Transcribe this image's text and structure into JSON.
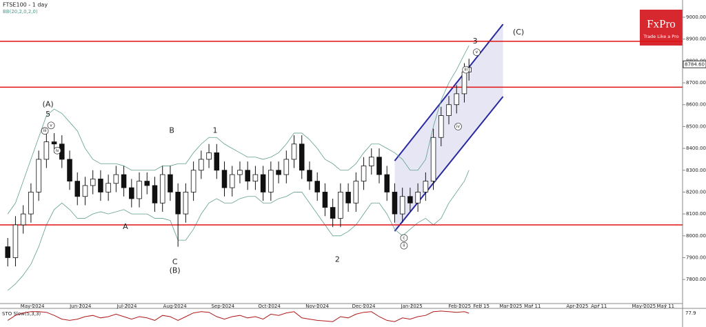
{
  "chart_data": {
    "type": "candlestick",
    "title": "FTSE100 - 1 day",
    "indicator": "BB(20,2,0,2,0)",
    "logo": "FxPro",
    "logo_tagline": "Trade Like a Pro",
    "x": [
      0,
      5,
      10,
      15,
      20,
      25,
      30,
      35,
      40,
      45,
      50,
      55,
      60,
      65,
      70,
      75,
      80,
      85,
      90,
      95,
      100,
      105,
      110,
      115,
      120,
      125,
      130,
      135,
      140,
      145,
      150,
      155,
      160,
      165,
      170,
      175,
      180,
      185,
      190,
      195,
      200,
      205,
      210,
      215,
      220,
      225,
      230,
      235,
      240,
      245,
      250,
      255,
      260,
      265,
      270,
      275,
      280,
      285,
      290,
      295,
      298
    ],
    "open": [
      7950,
      7900,
      8050,
      8100,
      8200,
      8350,
      8430,
      8420,
      8350,
      8250,
      8180,
      8230,
      8260,
      8200,
      8240,
      8280,
      8220,
      8170,
      8250,
      8230,
      8150,
      8280,
      8200,
      8100,
      8200,
      8300,
      8350,
      8380,
      8300,
      8220,
      8280,
      8300,
      8250,
      8280,
      8200,
      8300,
      8280,
      8350,
      8420,
      8300,
      8250,
      8200,
      8130,
      8080,
      8200,
      8150,
      8250,
      8320,
      8360,
      8280,
      8200,
      8100,
      8180,
      8150,
      8200,
      8250,
      8450,
      8550,
      8600,
      8650,
      8750
    ],
    "high": [
      7990,
      8090,
      8140,
      8240,
      8390,
      8470,
      8470,
      8460,
      8390,
      8290,
      8270,
      8300,
      8300,
      8280,
      8320,
      8320,
      8260,
      8290,
      8290,
      8270,
      8320,
      8320,
      8240,
      8240,
      8340,
      8390,
      8420,
      8420,
      8340,
      8320,
      8340,
      8340,
      8320,
      8320,
      8340,
      8340,
      8390,
      8460,
      8460,
      8340,
      8290,
      8240,
      8170,
      8240,
      8240,
      8290,
      8360,
      8400,
      8400,
      8320,
      8240,
      8220,
      8220,
      8240,
      8290,
      8490,
      8590,
      8640,
      8690,
      8790,
      8810
    ],
    "low": [
      7860,
      7860,
      8010,
      8060,
      8160,
      8310,
      8380,
      8310,
      8210,
      8140,
      8140,
      8190,
      8160,
      8160,
      8200,
      8180,
      8130,
      8130,
      8190,
      8110,
      8110,
      8160,
      7950,
      8060,
      8160,
      8260,
      8310,
      8260,
      8180,
      8180,
      8240,
      8210,
      8210,
      8160,
      8160,
      8240,
      8240,
      8310,
      8260,
      8210,
      8160,
      8090,
      8040,
      8040,
      8110,
      8110,
      8210,
      8280,
      8240,
      8160,
      8060,
      8060,
      8110,
      8110,
      8160,
      8210,
      8410,
      8510,
      8560,
      8610,
      8710
    ],
    "close": [
      7900,
      8050,
      8100,
      8200,
      8350,
      8430,
      8420,
      8350,
      8250,
      8180,
      8230,
      8260,
      8200,
      8240,
      8280,
      8220,
      8170,
      8250,
      8230,
      8150,
      8280,
      8200,
      8100,
      8200,
      8300,
      8350,
      8380,
      8300,
      8220,
      8280,
      8300,
      8250,
      8280,
      8200,
      8300,
      8280,
      8350,
      8420,
      8300,
      8250,
      8200,
      8130,
      8080,
      8200,
      8150,
      8250,
      8320,
      8360,
      8280,
      8200,
      8100,
      8180,
      8150,
      8200,
      8250,
      8450,
      8550,
      8600,
      8650,
      8750,
      8770
    ],
    "bb_upper": [
      8100,
      8150,
      8250,
      8350,
      8450,
      8550,
      8580,
      8560,
      8520,
      8480,
      8400,
      8350,
      8330,
      8330,
      8330,
      8320,
      8300,
      8300,
      8300,
      8300,
      8320,
      8320,
      8330,
      8330,
      8380,
      8420,
      8450,
      8450,
      8420,
      8400,
      8380,
      8360,
      8360,
      8350,
      8360,
      8380,
      8420,
      8470,
      8470,
      8440,
      8400,
      8350,
      8330,
      8300,
      8300,
      8330,
      8380,
      8420,
      8420,
      8400,
      8380,
      8350,
      8300,
      8300,
      8350,
      8500,
      8620,
      8700,
      8760,
      8830,
      8870
    ],
    "bb_lower": [
      7750,
      7780,
      7820,
      7870,
      7950,
      8050,
      8120,
      8150,
      8120,
      8080,
      8080,
      8100,
      8110,
      8100,
      8110,
      8120,
      8100,
      8100,
      8100,
      8080,
      8080,
      8070,
      7980,
      7980,
      8030,
      8100,
      8150,
      8170,
      8150,
      8150,
      8170,
      8180,
      8180,
      8150,
      8150,
      8170,
      8180,
      8200,
      8200,
      8150,
      8100,
      8050,
      8000,
      8000,
      8020,
      8050,
      8100,
      8150,
      8150,
      8100,
      8030,
      8000,
      8030,
      8060,
      8080,
      8050,
      8080,
      8150,
      8200,
      8250,
      8300
    ],
    "xlim": [
      -5,
      436
    ],
    "ylim": [
      7690,
      9079
    ],
    "xticks": [
      {
        "value": 16,
        "label": "May-2024"
      },
      {
        "value": 47,
        "label": "Jun-2024"
      },
      {
        "value": 77,
        "label": "Jul-2024"
      },
      {
        "value": 108,
        "label": "Aug-2024"
      },
      {
        "value": 139,
        "label": "Sep-2024"
      },
      {
        "value": 169,
        "label": "Oct-2024"
      },
      {
        "value": 200,
        "label": "Nov-2024"
      },
      {
        "value": 230,
        "label": "Dec-2024"
      },
      {
        "value": 261,
        "label": "Jan-2025"
      },
      {
        "value": 292,
        "label": "Feb-2025"
      },
      {
        "value": 306,
        "label": "Feb 15"
      },
      {
        "value": 325,
        "label": "Mar-2025"
      },
      {
        "value": 339,
        "label": "Mar 11"
      },
      {
        "value": 368,
        "label": "Apr-2025"
      },
      {
        "value": 382,
        "label": "Apr 11"
      },
      {
        "value": 411,
        "label": "May-2025"
      },
      {
        "value": 425,
        "label": "May 11"
      }
    ],
    "yticks": [
      {
        "value": 7800,
        "label": "7800.00"
      },
      {
        "value": 7900,
        "label": "7900.00"
      },
      {
        "value": 8000,
        "label": "8000.00"
      },
      {
        "value": 8100,
        "label": "8100.00"
      },
      {
        "value": 8200,
        "label": "8200.00"
      },
      {
        "value": 8300,
        "label": "8300.00"
      },
      {
        "value": 8400,
        "label": "8400.00"
      },
      {
        "value": 8500,
        "label": "8500.00"
      },
      {
        "value": 8600,
        "label": "8600.00"
      },
      {
        "value": 8700,
        "label": "8700.00"
      },
      {
        "value": 8800,
        "label": "8800.00"
      },
      {
        "value": 8900,
        "label": "8900.00"
      },
      {
        "value": 9000,
        "label": "9000.00"
      }
    ],
    "last_price": {
      "value": 8784.6,
      "label": "8784.60"
    },
    "hlines": [
      8890,
      8680,
      8050
    ],
    "hline_color": "#e01010",
    "channel": {
      "upper": [
        [
          250,
          8343
        ],
        [
          320,
          8968
        ]
      ],
      "lower": [
        [
          250,
          8021
        ],
        [
          320,
          8637
        ]
      ],
      "color": "#2828a0"
    },
    "wave_labels": [
      {
        "text": "(A)",
        "x": 26,
        "y": 8600,
        "circled": false
      },
      {
        "text": "5",
        "x": 26,
        "y": 8555,
        "circled": false
      },
      {
        "text": "v",
        "x": 28,
        "y": 8505,
        "circled": true
      },
      {
        "text": "iii",
        "x": 24,
        "y": 8480,
        "circled": true
      },
      {
        "text": "iv",
        "x": 32,
        "y": 8390,
        "circled": true
      },
      {
        "text": "A",
        "x": 76,
        "y": 8040,
        "circled": false
      },
      {
        "text": "B",
        "x": 106,
        "y": 8480,
        "circled": false
      },
      {
        "text": "C",
        "x": 108,
        "y": 7880,
        "circled": false
      },
      {
        "text": "(B)",
        "x": 108,
        "y": 7840,
        "circled": false
      },
      {
        "text": "1",
        "x": 134,
        "y": 8480,
        "circled": false
      },
      {
        "text": "2",
        "x": 213,
        "y": 7890,
        "circled": false
      },
      {
        "text": "c",
        "x": 256,
        "y": 7990,
        "circled": true
      },
      {
        "text": "ii",
        "x": 256,
        "y": 7955,
        "circled": true
      },
      {
        "text": "iv",
        "x": 291,
        "y": 8500,
        "circled": true
      },
      {
        "text": "iii",
        "x": 296,
        "y": 8760,
        "circled": true
      },
      {
        "text": "v",
        "x": 303,
        "y": 8840,
        "circled": true
      },
      {
        "text": "3",
        "x": 302,
        "y": 8890,
        "circled": false
      },
      {
        "text": "(C)",
        "x": 330,
        "y": 8930,
        "circled": false
      }
    ],
    "sto": {
      "label": "STO Slow(5,3,3)",
      "ylim": [
        0,
        100
      ],
      "color": "#b01818",
      "values": [
        20,
        60,
        80,
        90,
        90,
        85,
        60,
        30,
        20,
        30,
        50,
        60,
        40,
        50,
        70,
        50,
        30,
        50,
        40,
        20,
        60,
        50,
        20,
        50,
        80,
        90,
        85,
        50,
        30,
        50,
        60,
        40,
        50,
        30,
        70,
        60,
        80,
        90,
        40,
        30,
        20,
        15,
        10,
        50,
        40,
        70,
        85,
        90,
        50,
        20,
        10,
        40,
        30,
        50,
        60,
        90,
        95,
        90,
        85,
        90,
        77.9
      ],
      "last_label": "77.9"
    }
  }
}
